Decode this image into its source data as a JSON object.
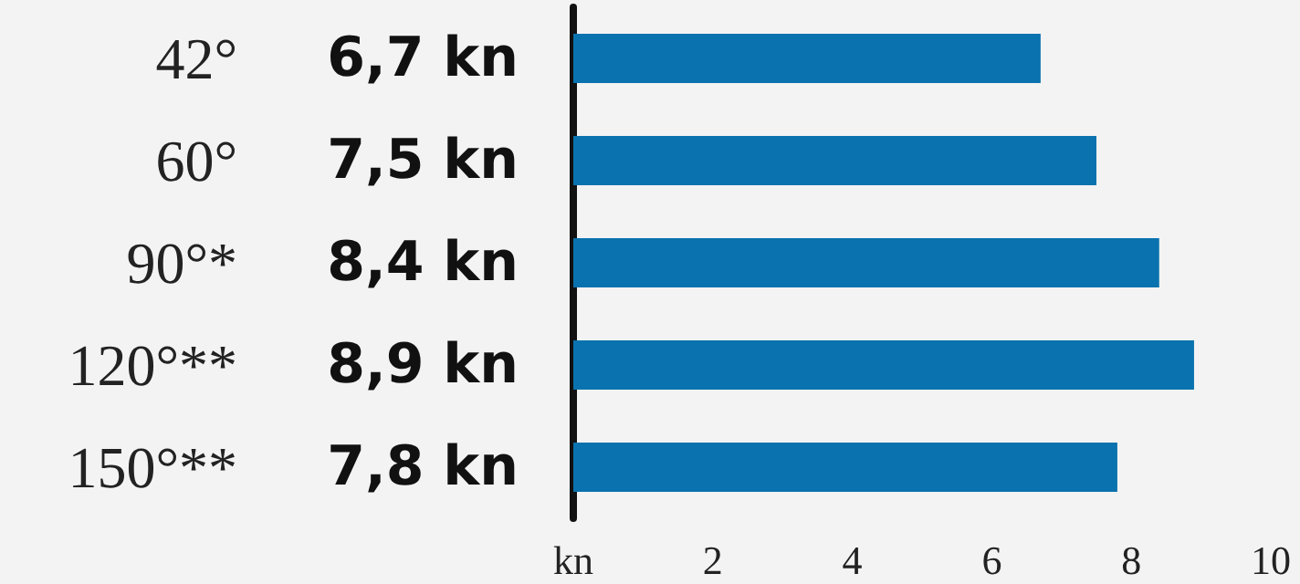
{
  "chart_data": {
    "type": "bar",
    "orientation": "horizontal",
    "categories": [
      "42°",
      "60°",
      "90°*",
      "120°**",
      "150°**"
    ],
    "values": [
      6.7,
      7.5,
      8.4,
      8.9,
      7.8
    ],
    "value_labels": [
      "6,7 kn",
      "7,5 kn",
      "8,4 kn",
      "8,9 kn",
      "7,8 kn"
    ],
    "color": "#0a72ae",
    "xlim": [
      0,
      10
    ],
    "xticks": [
      {
        "value": 0,
        "label": "kn"
      },
      2,
      4,
      6,
      8,
      10
    ],
    "grid": false
  }
}
